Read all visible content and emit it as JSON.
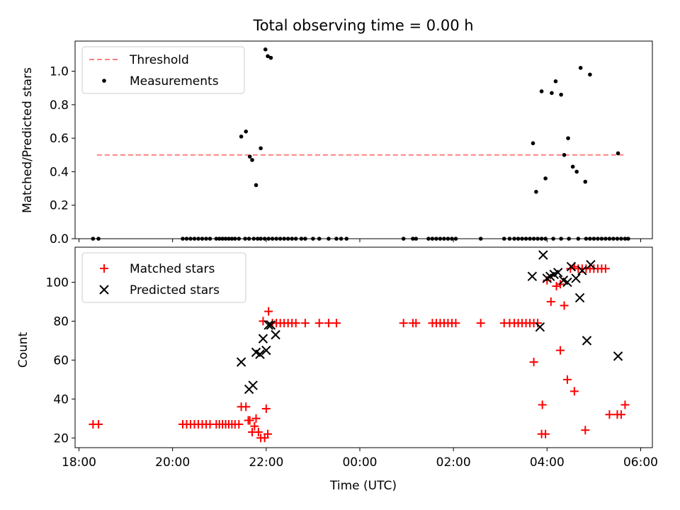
{
  "chart_data": [
    {
      "type": "scatter",
      "title": "Total observing time = 0.00 h",
      "xlabel": "",
      "ylabel": "Matched/Predicted stars",
      "x_axis": "time",
      "xlim": [
        "17:55",
        "30:15"
      ],
      "ylim": [
        0,
        1.18
      ],
      "yticks": [
        "0.0",
        "0.2",
        "0.4",
        "0.6",
        "0.8",
        "1.0"
      ],
      "grid": false,
      "legend_position": "top-left",
      "series": [
        {
          "name": "Threshold",
          "style": "dashed-line",
          "color": "#ff8080",
          "x": [
            "18:23",
            "29:38"
          ],
          "y": [
            0.5,
            0.5
          ]
        },
        {
          "name": "Measurements",
          "style": "dot",
          "color": "#000000",
          "x": [
            "18:18",
            "18:25",
            "20:13",
            "20:18",
            "20:23",
            "20:28",
            "20:33",
            "20:38",
            "20:43",
            "20:48",
            "20:56",
            "21:00",
            "21:04",
            "21:08",
            "21:12",
            "21:16",
            "21:20",
            "21:25",
            "21:33",
            "21:38",
            "21:44",
            "21:49",
            "21:53",
            "21:58",
            "22:03",
            "22:08",
            "22:13",
            "22:18",
            "22:23",
            "22:28",
            "22:33",
            "22:38",
            "22:45",
            "22:50",
            "23:00",
            "23:08",
            "23:20",
            "23:30",
            "23:36",
            "23:43",
            "24:56",
            "25:08",
            "25:12",
            "25:28",
            "25:33",
            "25:38",
            "25:43",
            "25:48",
            "25:53",
            "25:58",
            "26:03",
            "26:35",
            "27:05",
            "27:12",
            "27:18",
            "27:23",
            "27:28",
            "27:33",
            "27:38",
            "27:43",
            "27:48",
            "27:53",
            "27:58",
            "28:08",
            "28:18",
            "28:28",
            "28:40",
            "28:50",
            "28:55",
            "29:00",
            "29:05",
            "29:10",
            "29:15",
            "29:20",
            "29:25",
            "29:30",
            "29:35",
            "29:40",
            "29:44",
            "21:28",
            "21:34",
            "21:39",
            "21:42",
            "21:47",
            "21:53",
            "21:59",
            "22:02",
            "22:06",
            "27:42",
            "27:46",
            "27:53",
            "27:58",
            "28:06",
            "28:11",
            "28:18",
            "28:22",
            "28:27",
            "28:33",
            "28:38",
            "28:43",
            "28:49",
            "28:55",
            "29:31"
          ],
          "y": [
            0,
            0,
            0,
            0,
            0,
            0,
            0,
            0,
            0,
            0,
            0,
            0,
            0,
            0,
            0,
            0,
            0,
            0,
            0,
            0,
            0,
            0,
            0,
            0,
            0,
            0,
            0,
            0,
            0,
            0,
            0,
            0,
            0,
            0,
            0,
            0,
            0,
            0,
            0,
            0,
            0,
            0,
            0,
            0,
            0,
            0,
            0,
            0,
            0,
            0,
            0,
            0,
            0,
            0,
            0,
            0,
            0,
            0,
            0,
            0,
            0,
            0,
            0,
            0,
            0,
            0,
            0,
            0,
            0,
            0,
            0,
            0,
            0,
            0,
            0,
            0,
            0,
            0,
            0,
            0.61,
            0.64,
            0.49,
            0.47,
            0.32,
            0.54,
            1.13,
            1.09,
            1.08,
            0.57,
            0.28,
            0.88,
            0.36,
            0.87,
            0.94,
            0.86,
            0.5,
            0.6,
            0.43,
            0.4,
            1.02,
            0.34,
            0.98,
            0.51
          ]
        }
      ]
    },
    {
      "type": "scatter",
      "title": "",
      "xlabel": "Time (UTC)",
      "ylabel": "Count",
      "x_axis": "time",
      "xlim": [
        "17:55",
        "30:15"
      ],
      "ylim": [
        15,
        118
      ],
      "yticks": [
        "20",
        "40",
        "60",
        "80",
        "100"
      ],
      "xticks": [
        "18:00",
        "20:00",
        "22:00",
        "00:00",
        "02:00",
        "04:00",
        "06:00"
      ],
      "grid": false,
      "legend_position": "top-left",
      "series": [
        {
          "name": "Matched stars",
          "style": "plus",
          "color": "#ff0000",
          "x": [
            "18:18",
            "18:25",
            "20:13",
            "20:18",
            "20:23",
            "20:28",
            "20:33",
            "20:38",
            "20:43",
            "20:48",
            "20:56",
            "21:00",
            "21:04",
            "21:08",
            "21:12",
            "21:16",
            "21:20",
            "21:25",
            "21:28",
            "21:34",
            "21:37",
            "21:42",
            "21:47",
            "21:53",
            "21:56",
            "22:00",
            "22:03",
            "22:08",
            "22:13",
            "22:18",
            "22:23",
            "22:28",
            "22:33",
            "22:38",
            "22:50",
            "23:08",
            "23:20",
            "23:30",
            "24:56",
            "25:08",
            "25:12",
            "25:33",
            "25:38",
            "25:43",
            "25:48",
            "25:53",
            "25:58",
            "26:03",
            "26:35",
            "27:05",
            "27:12",
            "27:18",
            "27:23",
            "27:28",
            "27:33",
            "27:38",
            "27:43",
            "27:48",
            "27:53",
            "27:58",
            "28:00",
            "28:05",
            "28:12",
            "28:17",
            "28:22",
            "28:30",
            "28:35",
            "28:40",
            "28:45",
            "28:50",
            "28:55",
            "29:00",
            "29:05",
            "29:10",
            "29:15",
            "29:20",
            "29:30",
            "29:35",
            "29:40",
            "21:39",
            "21:45",
            "21:50",
            "21:58",
            "22:02",
            "27:43",
            "27:54",
            "28:17",
            "28:26",
            "28:35",
            "28:49"
          ],
          "y": [
            27,
            27,
            27,
            27,
            27,
            27,
            27,
            27,
            27,
            27,
            27,
            27,
            27,
            27,
            27,
            27,
            27,
            27,
            36,
            36,
            29,
            23,
            30,
            20,
            80,
            35,
            85,
            79,
            79,
            79,
            79,
            79,
            79,
            79,
            79,
            79,
            79,
            79,
            79,
            79,
            79,
            79,
            79,
            79,
            79,
            79,
            79,
            79,
            79,
            79,
            79,
            79,
            79,
            79,
            79,
            79,
            79,
            79,
            22,
            22,
            101,
            90,
            98,
            99,
            88,
            107,
            108,
            107,
            107,
            107,
            107,
            107,
            107,
            107,
            107,
            32,
            32,
            32,
            37,
            29,
            26,
            23,
            20,
            22,
            59,
            37,
            65,
            50,
            44,
            24
          ]
        },
        {
          "name": "Predicted stars",
          "style": "x",
          "color": "#000000",
          "x": [
            "21:28",
            "21:38",
            "21:43",
            "21:47",
            "21:52",
            "21:56",
            "22:00",
            "22:03",
            "22:06",
            "22:12",
            "27:41",
            "27:51",
            "27:55",
            "28:00",
            "28:04",
            "28:09",
            "28:14",
            "28:21",
            "28:26",
            "28:31",
            "28:37",
            "28:42",
            "28:45",
            "28:51",
            "28:56",
            "29:31"
          ],
          "y": [
            59,
            45,
            47,
            64,
            63,
            71,
            65,
            78,
            78,
            73,
            103,
            77,
            114,
            102,
            103,
            104,
            105,
            101,
            100,
            108,
            102,
            92,
            106,
            70,
            109,
            62
          ]
        }
      ]
    }
  ]
}
